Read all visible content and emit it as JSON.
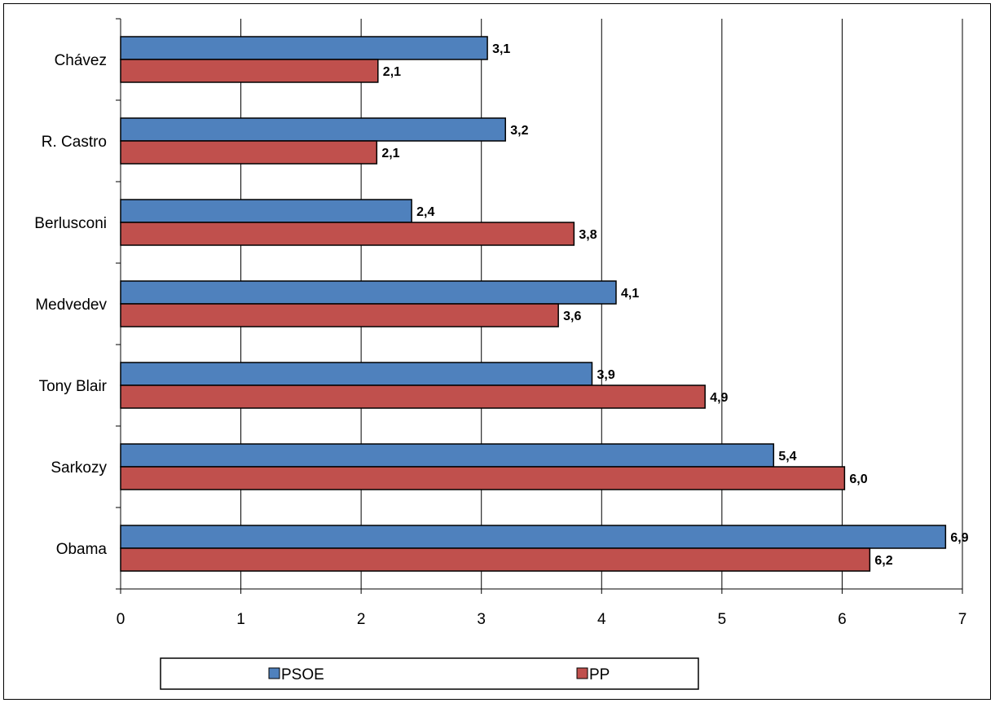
{
  "chart_data": {
    "type": "bar",
    "orientation": "horizontal",
    "categories": [
      "Chávez",
      "R. Castro",
      "Berlusconi",
      "Medvedev",
      "Tony Blair",
      "Sarkozy",
      "Obama"
    ],
    "series": [
      {
        "name": "PSOE",
        "color": "#4F81BD",
        "values": [
          3.05,
          3.2,
          2.42,
          4.12,
          3.92,
          5.43,
          6.86
        ],
        "labels": [
          "3,1",
          "3,2",
          "2,4",
          "4,1",
          "3,9",
          "5,4",
          "6,9"
        ]
      },
      {
        "name": "PP",
        "color": "#C0504D",
        "values": [
          2.14,
          2.13,
          3.77,
          3.64,
          4.86,
          6.02,
          6.23
        ],
        "labels": [
          "2,1",
          "2,1",
          "3,8",
          "3,6",
          "4,9",
          "6,0",
          "6,2"
        ]
      }
    ],
    "xlim": [
      0,
      7
    ],
    "xticks": [
      "0",
      "1",
      "2",
      "3",
      "4",
      "5",
      "6",
      "7"
    ],
    "grid": "vertical",
    "legend": "bottom"
  }
}
